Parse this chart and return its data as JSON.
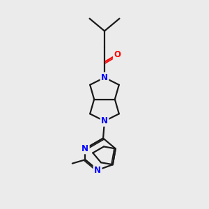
{
  "bg_color": "#ebebeb",
  "bond_color": "#1a1a1a",
  "N_color": "#0000ff",
  "O_color": "#ff0000",
  "bond_width": 1.6,
  "font_size_atom": 8.5,
  "figsize": [
    3.0,
    3.0
  ],
  "dpi": 100,
  "xlim": [
    0,
    10
  ],
  "ylim": [
    0,
    10
  ]
}
